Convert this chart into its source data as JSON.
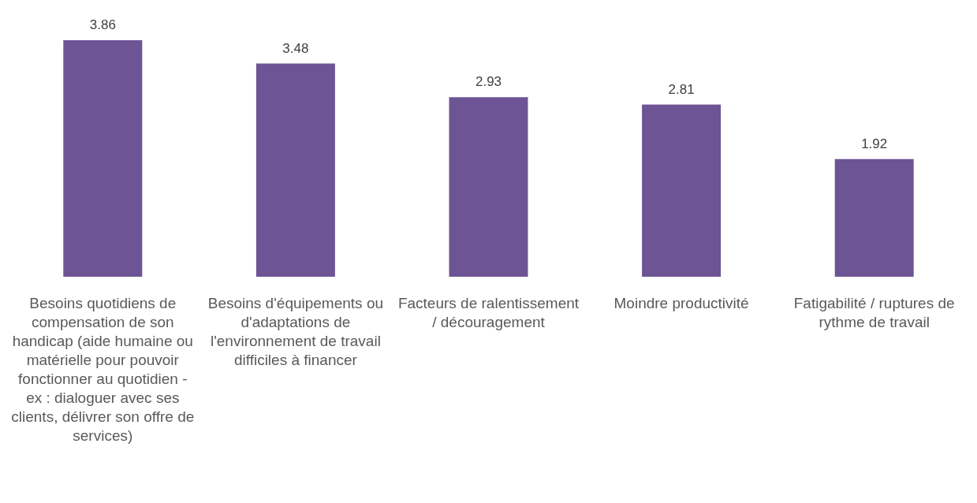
{
  "chart_data": {
    "type": "bar",
    "categories": [
      "Besoins quotidiens de compensation de son handicap (aide humaine ou matérielle pour pouvoir fonctionner au quotidien - ex : dialoguer avec ses clients, délivrer son offre de services)",
      "Besoins d'équipements ou d'adaptations de l'environnement de travail difficiles à financer",
      "Facteurs de ralentissement / découragement",
      "Moindre productivité",
      "Fatigabilité / ruptures de rythme de travail"
    ],
    "values": [
      3.86,
      3.48,
      2.93,
      2.81,
      1.92
    ],
    "color": "#6d5494",
    "relative": false,
    "data_labels": true
  }
}
